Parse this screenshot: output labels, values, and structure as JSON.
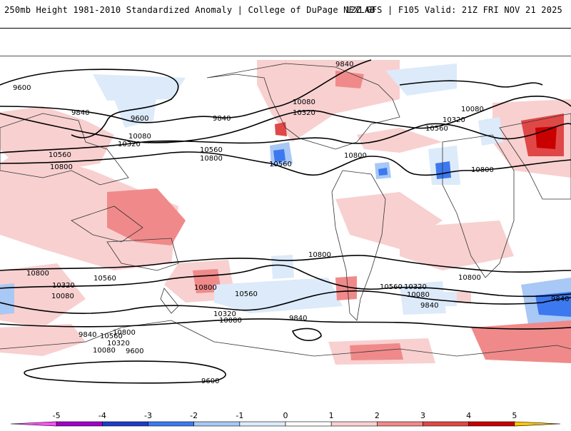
{
  "header": {
    "left_title": "250mb Height 1981-2010 Standardized Anomaly | College of DuPage NEXLAB",
    "right_title": "12Z GFS | F105 Valid: 21Z FRI NOV 21 2025"
  },
  "contour_labels": [
    "9840",
    "9600",
    "9840",
    "9600",
    "9840",
    "10080",
    "10320",
    "10080",
    "10320",
    "10560",
    "10080",
    "10320",
    "10560",
    "10800",
    "10560",
    "10800",
    "10560",
    "10800",
    "10800",
    "10080",
    "10320",
    "10560",
    "10800",
    "10800",
    "10560",
    "10320",
    "10080",
    "9840",
    "10800",
    "10800",
    "10320",
    "10080",
    "10560",
    "10800",
    "10560",
    "10320",
    "10080",
    "9840",
    "9840",
    "9600",
    "9600",
    "9840"
  ],
  "colorbar": {
    "tick_labels": [
      "-5",
      "-4",
      "-3",
      "-2",
      "-1",
      "0",
      "1",
      "2",
      "3",
      "4",
      "5"
    ],
    "bins": [
      {
        "lo": -5,
        "hi": -4,
        "color": "#a000c8"
      },
      {
        "lo": -4,
        "hi": -3,
        "color": "#1e3cc8"
      },
      {
        "lo": -3,
        "hi": -2,
        "color": "#3c78f0"
      },
      {
        "lo": -2,
        "hi": -1,
        "color": "#a8c8f5"
      },
      {
        "lo": -1,
        "hi": 0,
        "color": "#dceafa"
      },
      {
        "lo": 0,
        "hi": 1,
        "color": "#ffffff"
      },
      {
        "lo": 1,
        "hi": 2,
        "color": "#f8d0d0"
      },
      {
        "lo": 2,
        "hi": 3,
        "color": "#f08a8a"
      },
      {
        "lo": 3,
        "hi": 4,
        "color": "#e04848"
      },
      {
        "lo": 4,
        "hi": 5,
        "color": "#c80000"
      },
      {
        "lo": 5,
        "hi": 6,
        "color": "#ffa000"
      }
    ],
    "below_color": "#ff50ff",
    "above_color": "#ffc800"
  }
}
